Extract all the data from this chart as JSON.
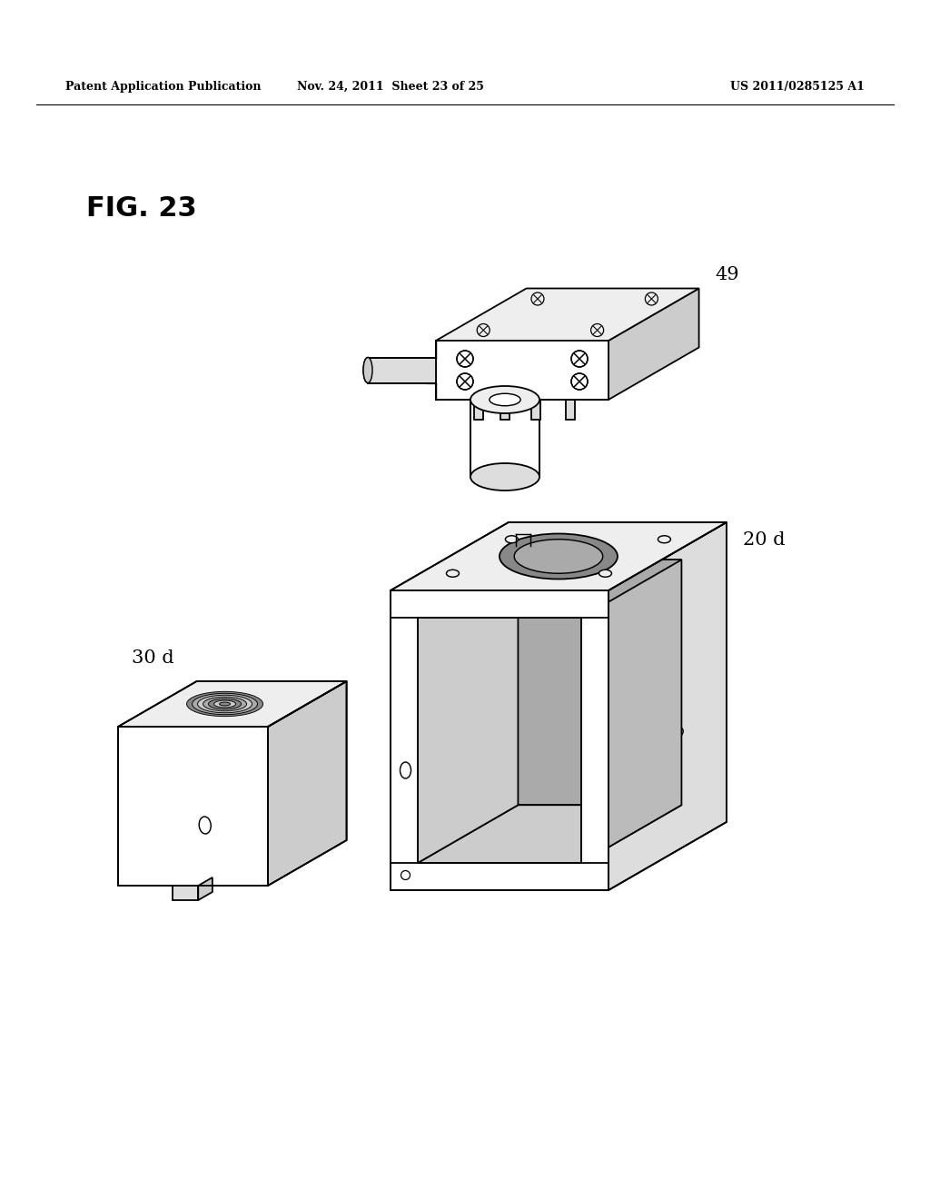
{
  "title": "FIG. 23",
  "header_left": "Patent Application Publication",
  "header_mid": "Nov. 24, 2011  Sheet 23 of 25",
  "header_right": "US 2011/0285125 A1",
  "background_color": "#ffffff",
  "line_color": "#000000",
  "labels": {
    "part49": "49",
    "part20d": "20 d",
    "part30d": "30 d"
  },
  "colors": {
    "face_white": "#ffffff",
    "face_light": "#eeeeee",
    "face_mid": "#dddddd",
    "face_dark": "#cccccc",
    "face_darker": "#bbbbbb",
    "interior": "#aaaaaa",
    "deep_interior": "#888888"
  }
}
